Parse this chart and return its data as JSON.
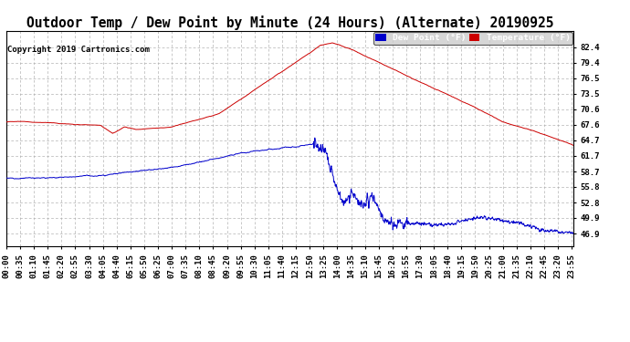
{
  "title": "Outdoor Temp / Dew Point by Minute (24 Hours) (Alternate) 20190925",
  "copyright": "Copyright 2019 Cartronics.com",
  "legend_dew": "Dew Point (°F)",
  "legend_temp": "Temperature (°F)",
  "y_ticks": [
    46.9,
    49.9,
    52.8,
    55.8,
    58.7,
    61.7,
    64.7,
    67.6,
    70.6,
    73.5,
    76.5,
    79.4,
    82.4
  ],
  "ylim": [
    44.5,
    85.5
  ],
  "background_color": "#ffffff",
  "plot_bg_color": "#ffffff",
  "temp_color": "#cc0000",
  "dew_color": "#0000cc",
  "grid_color": "#aaaaaa",
  "title_fontsize": 10.5,
  "tick_fontsize": 6.5,
  "copyright_fontsize": 6.5
}
